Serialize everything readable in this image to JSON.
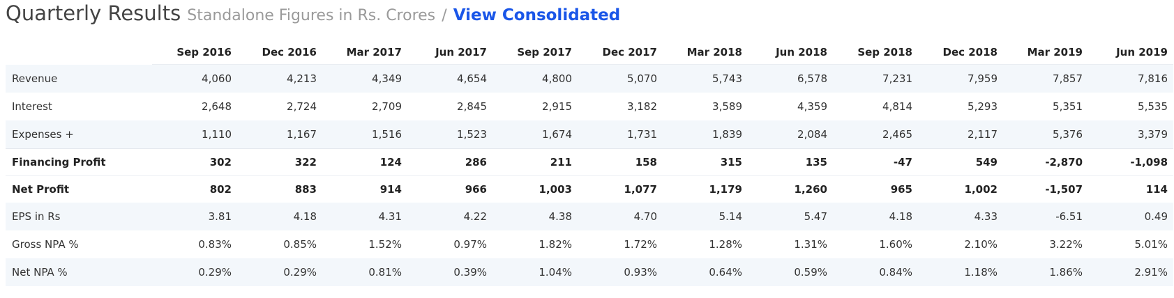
{
  "header": {
    "title": "Quarterly Results",
    "subtitle": "Standalone Figures in Rs. Crores",
    "separator": "/",
    "link_label": "View Consolidated"
  },
  "table": {
    "columns": [
      "Sep 2016",
      "Dec 2016",
      "Mar 2017",
      "Jun 2017",
      "Sep 2017",
      "Dec 2017",
      "Mar 2018",
      "Jun 2018",
      "Sep 2018",
      "Dec 2018",
      "Mar 2019",
      "Jun 2019"
    ],
    "rows": [
      {
        "label": "Revenue",
        "values": [
          "4,060",
          "4,213",
          "4,349",
          "4,654",
          "4,800",
          "5,070",
          "5,743",
          "6,578",
          "7,231",
          "7,959",
          "7,857",
          "7,816"
        ]
      },
      {
        "label": "Interest",
        "values": [
          "2,648",
          "2,724",
          "2,709",
          "2,845",
          "2,915",
          "3,182",
          "3,589",
          "4,359",
          "4,814",
          "5,293",
          "5,351",
          "5,535"
        ]
      },
      {
        "label": "Expenses +",
        "values": [
          "1,110",
          "1,167",
          "1,516",
          "1,523",
          "1,674",
          "1,731",
          "1,839",
          "2,084",
          "2,465",
          "2,117",
          "5,376",
          "3,379"
        ]
      },
      {
        "label": "Financing Profit",
        "values": [
          "302",
          "322",
          "124",
          "286",
          "211",
          "158",
          "315",
          "135",
          "-47",
          "549",
          "-2,870",
          "-1,098"
        ]
      },
      {
        "label": "Net Profit",
        "values": [
          "802",
          "883",
          "914",
          "966",
          "1,003",
          "1,077",
          "1,179",
          "1,260",
          "965",
          "1,002",
          "-1,507",
          "114"
        ]
      },
      {
        "label": "EPS in Rs",
        "values": [
          "3.81",
          "4.18",
          "4.31",
          "4.22",
          "4.38",
          "4.70",
          "5.14",
          "5.47",
          "4.18",
          "4.33",
          "-6.51",
          "0.49"
        ]
      },
      {
        "label": "Gross NPA %",
        "values": [
          "0.83%",
          "0.85%",
          "1.52%",
          "0.97%",
          "1.82%",
          "1.72%",
          "1.28%",
          "1.31%",
          "1.60%",
          "2.10%",
          "3.22%",
          "5.01%"
        ]
      },
      {
        "label": "Net NPA %",
        "values": [
          "0.29%",
          "0.29%",
          "0.81%",
          "0.39%",
          "1.04%",
          "0.93%",
          "0.64%",
          "0.59%",
          "0.84%",
          "1.18%",
          "1.86%",
          "2.91%"
        ]
      }
    ]
  },
  "colors": {
    "link": "#1a56e8",
    "row_shade": "#f3f7fb",
    "title": "#444444",
    "subtitle": "#9a9a9a"
  }
}
